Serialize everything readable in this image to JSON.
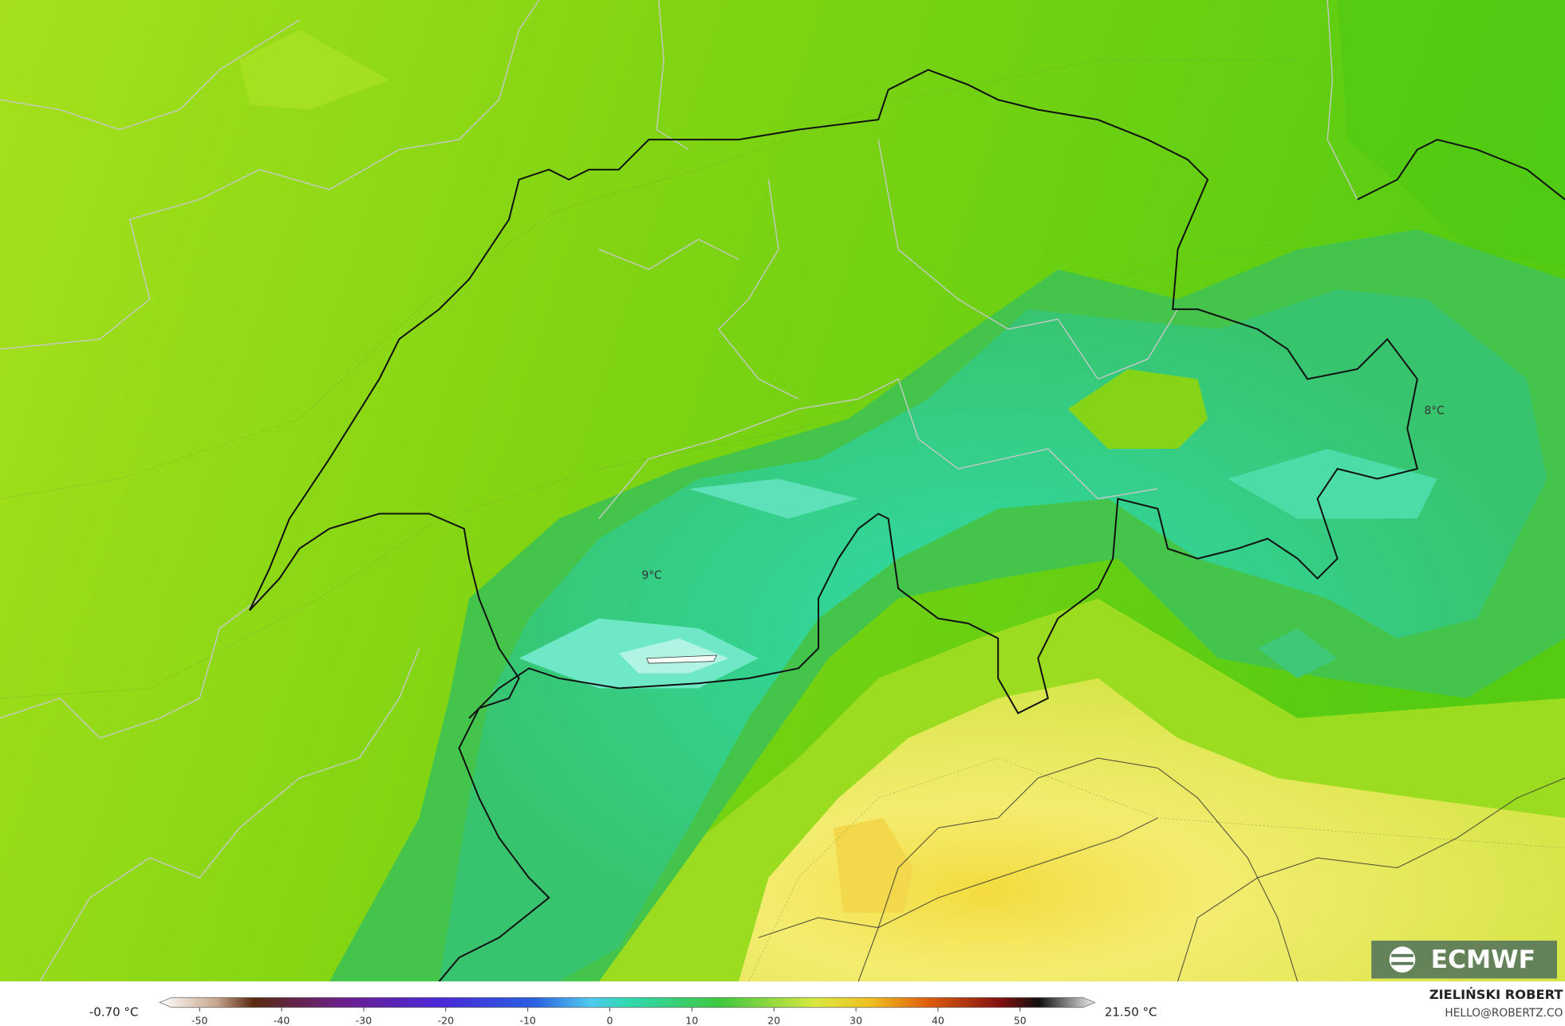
{
  "map": {
    "labels": [
      "9°C",
      "8°C"
    ],
    "logo": "ECMWF"
  },
  "colorbar": {
    "min_label": "-0.70 °C",
    "max_label": "21.50 °C",
    "ticks": [
      -50,
      -40,
      -30,
      -20,
      -10,
      0,
      10,
      20,
      30,
      40,
      50
    ]
  },
  "credits": {
    "author": "ZIELIŃSKI ROBERT",
    "contact": "HELLO@ROBERTZ.CO"
  }
}
